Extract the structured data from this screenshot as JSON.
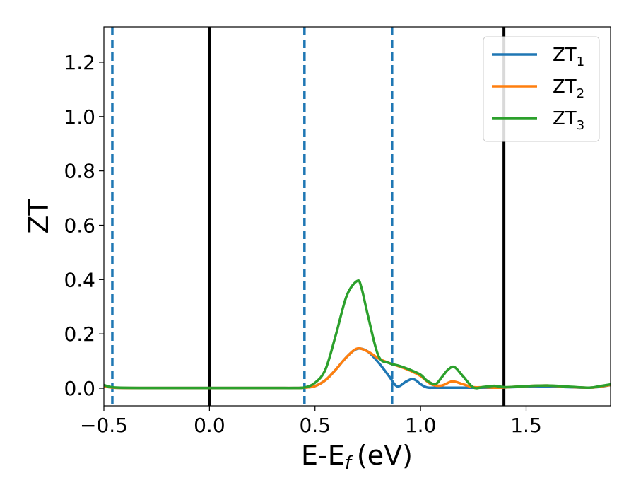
{
  "chart_data": {
    "type": "line",
    "xlabel": "E-E",
    "xlabel_sub": "f",
    "xlabel_unit": "(eV)",
    "ylabel": "ZT",
    "xlim": [
      -0.5,
      1.9
    ],
    "ylim": [
      -0.065,
      1.33
    ],
    "xticks": [
      {
        "value": -0.5,
        "label": "−0.5"
      },
      {
        "value": 0.0,
        "label": "0.0"
      },
      {
        "value": 0.5,
        "label": "0.5"
      },
      {
        "value": 1.0,
        "label": "1.0"
      },
      {
        "value": 1.5,
        "label": "1.5"
      }
    ],
    "yticks": [
      {
        "value": 0.0,
        "label": "0.0"
      },
      {
        "value": 0.2,
        "label": "0.2"
      },
      {
        "value": 0.4,
        "label": "0.4"
      },
      {
        "value": 0.6,
        "label": "0.6"
      },
      {
        "value": 0.8,
        "label": "0.8"
      },
      {
        "value": 1.0,
        "label": "1.0"
      },
      {
        "value": 1.2,
        "label": "1.2"
      }
    ],
    "grid": false,
    "legend_position": "top-right",
    "vlines": [
      {
        "x": -0.46,
        "style": "dashed",
        "color": "#1f77b4"
      },
      {
        "x": 0.0,
        "style": "solid",
        "color": "#000000"
      },
      {
        "x": 0.45,
        "style": "dashed",
        "color": "#1f77b4"
      },
      {
        "x": 0.865,
        "style": "dashed",
        "color": "#1f77b4"
      },
      {
        "x": 1.395,
        "style": "solid",
        "color": "#000000"
      }
    ],
    "series": [
      {
        "name": "ZT",
        "name_sub": "1",
        "color": "#1f77b4",
        "x": [
          -0.5,
          -0.45,
          -0.3,
          0.0,
          0.3,
          0.4,
          0.45,
          0.5,
          0.55,
          0.6,
          0.65,
          0.7,
          0.75,
          0.8,
          0.85,
          0.88,
          0.9,
          0.93,
          0.96,
          0.98,
          1.0,
          1.03,
          1.06,
          1.1,
          1.15,
          1.2,
          1.25,
          1.3,
          1.35,
          1.4,
          1.5,
          1.6,
          1.7,
          1.8,
          1.85,
          1.9
        ],
        "y": [
          0.008,
          0.002,
          0.001,
          0.001,
          0.001,
          0.001,
          0.002,
          0.008,
          0.03,
          0.07,
          0.115,
          0.145,
          0.135,
          0.095,
          0.045,
          0.012,
          0.008,
          0.024,
          0.034,
          0.028,
          0.015,
          0.003,
          0.002,
          0.002,
          0.002,
          0.002,
          0.002,
          0.002,
          0.002,
          0.003,
          0.006,
          0.007,
          0.004,
          0.002,
          0.005,
          0.012
        ]
      },
      {
        "name": "ZT",
        "name_sub": "2",
        "color": "#ff7f0e",
        "x": [
          -0.5,
          -0.45,
          -0.3,
          0.0,
          0.3,
          0.4,
          0.45,
          0.5,
          0.55,
          0.6,
          0.65,
          0.7,
          0.75,
          0.8,
          0.85,
          0.9,
          0.95,
          1.0,
          1.05,
          1.1,
          1.15,
          1.2,
          1.25,
          1.3,
          1.35,
          1.4,
          1.5,
          1.6,
          1.7,
          1.8,
          1.85,
          1.9
        ],
        "y": [
          0.008,
          0.002,
          0.001,
          0.001,
          0.001,
          0.001,
          0.002,
          0.008,
          0.03,
          0.07,
          0.115,
          0.146,
          0.135,
          0.11,
          0.093,
          0.08,
          0.065,
          0.045,
          0.015,
          0.01,
          0.025,
          0.015,
          0.004,
          0.004,
          0.002,
          0.003,
          0.008,
          0.01,
          0.005,
          0.002,
          0.006,
          0.012
        ]
      },
      {
        "name": "ZT",
        "name_sub": "3",
        "color": "#2ca02c",
        "x": [
          -0.5,
          -0.45,
          -0.3,
          0.0,
          0.3,
          0.4,
          0.45,
          0.5,
          0.55,
          0.6,
          0.65,
          0.7,
          0.72,
          0.75,
          0.8,
          0.85,
          0.9,
          0.95,
          1.0,
          1.03,
          1.07,
          1.1,
          1.13,
          1.16,
          1.2,
          1.25,
          1.3,
          1.35,
          1.4,
          1.5,
          1.6,
          1.7,
          1.8,
          1.85,
          1.9
        ],
        "y": [
          0.012,
          0.003,
          0.001,
          0.001,
          0.001,
          0.001,
          0.003,
          0.02,
          0.07,
          0.2,
          0.34,
          0.395,
          0.37,
          0.27,
          0.12,
          0.093,
          0.082,
          0.068,
          0.05,
          0.028,
          0.015,
          0.04,
          0.068,
          0.078,
          0.045,
          0.003,
          0.005,
          0.009,
          0.004,
          0.008,
          0.01,
          0.006,
          0.002,
          0.008,
          0.014
        ]
      }
    ]
  }
}
